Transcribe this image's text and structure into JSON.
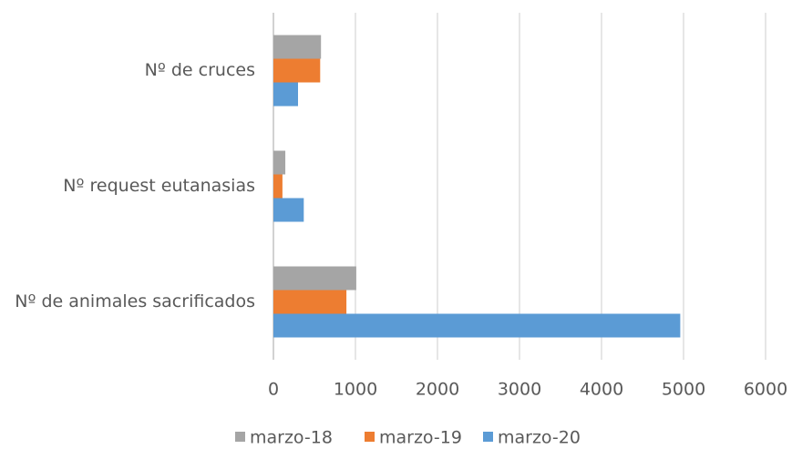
{
  "chart_data": {
    "type": "hbar",
    "categories": [
      "Nº de cruces",
      "Nº request eutanasias",
      "Nº de animales sacrificados"
    ],
    "series": [
      {
        "name": "marzo-18",
        "color": "#a5a5a5",
        "values": [
          580,
          145,
          1010
        ]
      },
      {
        "name": "marzo-19",
        "color": "#ed7d31",
        "values": [
          570,
          110,
          890
        ]
      },
      {
        "name": "marzo-20",
        "color": "#5b9bd5",
        "values": [
          300,
          370,
          4960
        ]
      }
    ],
    "xlim": [
      0,
      6000
    ],
    "xticks": [
      0,
      1000,
      2000,
      3000,
      4000,
      5000,
      6000
    ],
    "grid": true,
    "legend": "bottom"
  }
}
